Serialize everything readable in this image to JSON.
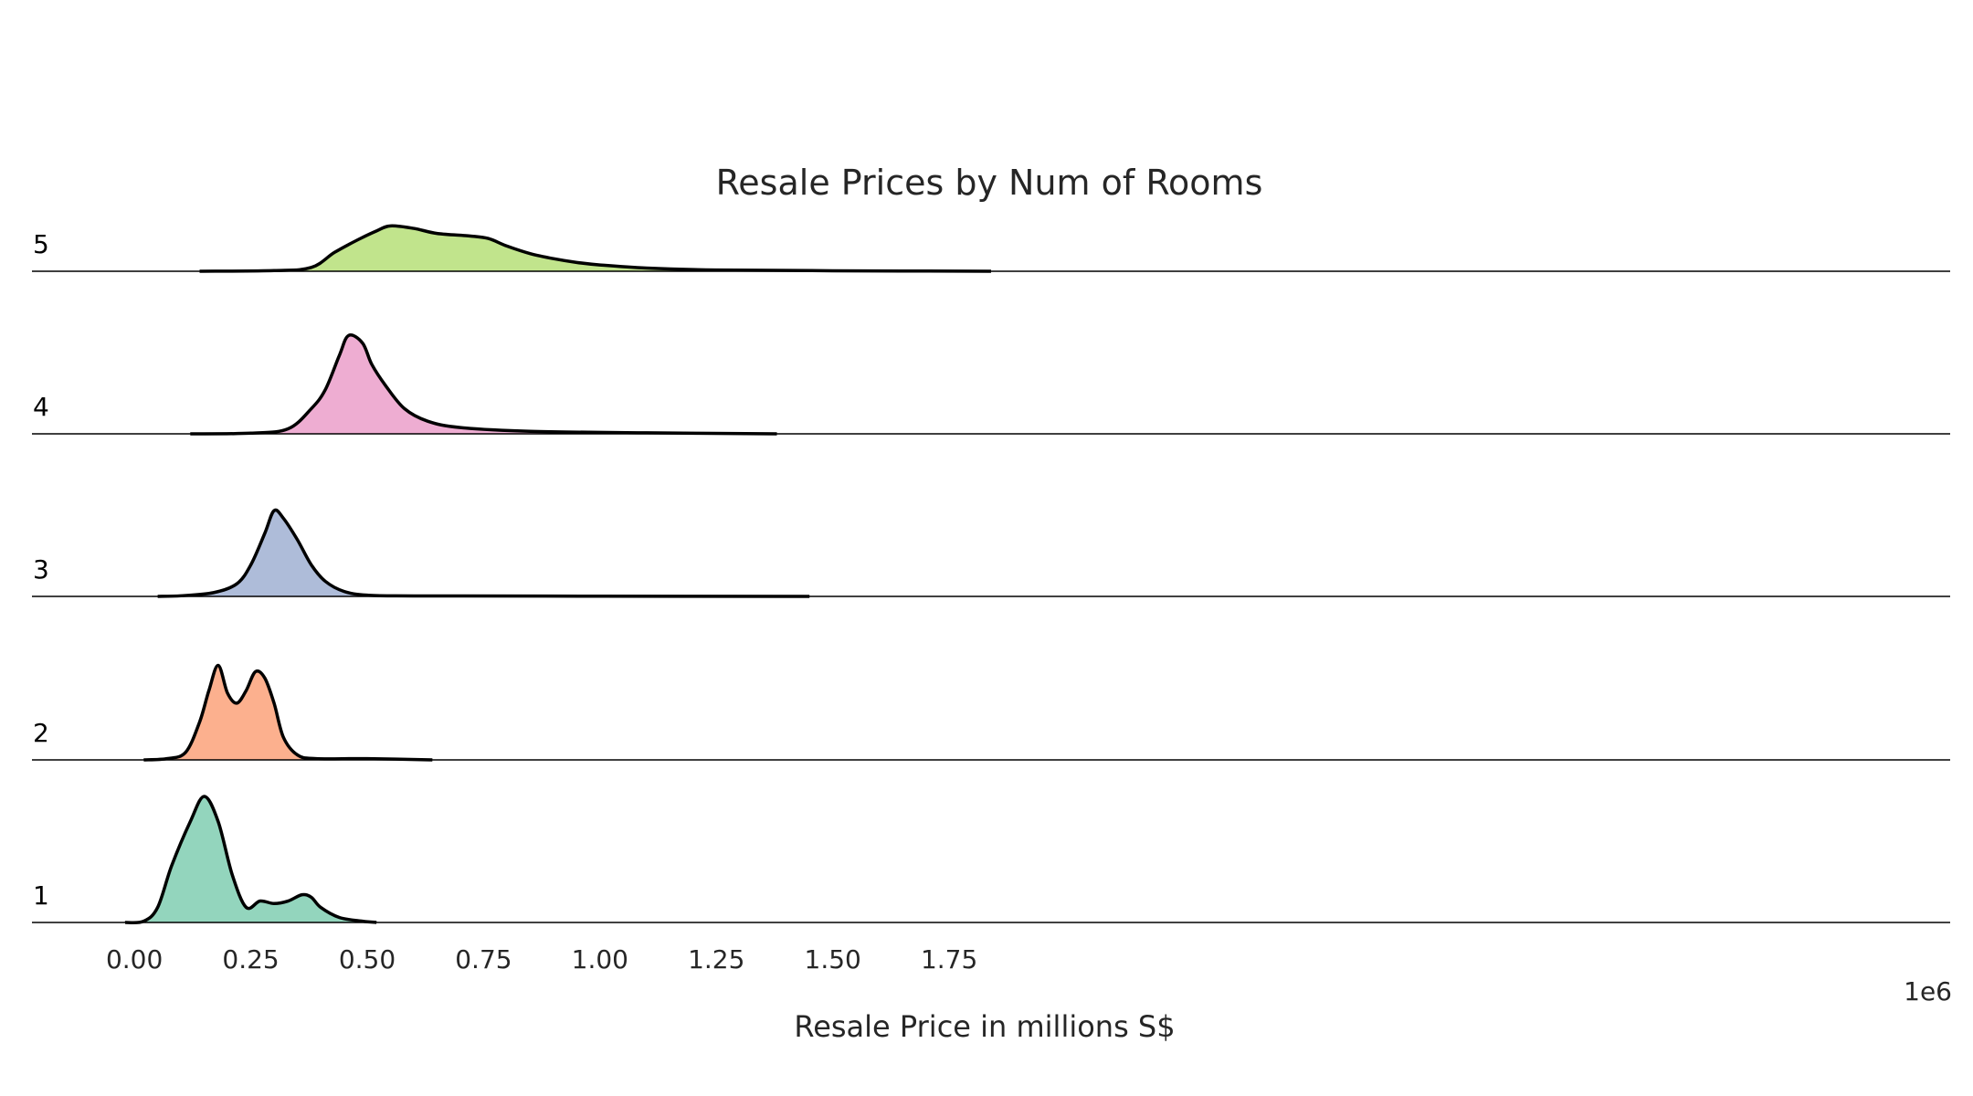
{
  "chart_data": {
    "type": "ridgeline",
    "title": "Resale Prices by Num of Rooms",
    "xlabel": "Resale Price in millions S$",
    "x_offset_label": "1e6",
    "xlim": [
      -0.22,
      3.9
    ],
    "xticks": [
      0.0,
      0.25,
      0.5,
      0.75,
      1.0,
      1.25,
      1.5,
      1.75
    ],
    "xtick_labels": [
      "0.00",
      "0.25",
      "0.50",
      "0.75",
      "1.00",
      "1.25",
      "1.50",
      "1.75"
    ],
    "x_unit_note": "x values in units of 1e6 S$ (tick value 0.25 = 250,000 S$)",
    "grid": false,
    "legend": "none",
    "series": [
      {
        "name": "1",
        "color": "#93d5bd",
        "points": [
          [
            -0.02,
            0
          ],
          [
            0.02,
            0.01
          ],
          [
            0.05,
            0.12
          ],
          [
            0.08,
            0.45
          ],
          [
            0.12,
            0.8
          ],
          [
            0.15,
            1.0
          ],
          [
            0.18,
            0.8
          ],
          [
            0.21,
            0.38
          ],
          [
            0.24,
            0.12
          ],
          [
            0.27,
            0.17
          ],
          [
            0.3,
            0.15
          ],
          [
            0.33,
            0.17
          ],
          [
            0.36,
            0.22
          ],
          [
            0.38,
            0.2
          ],
          [
            0.4,
            0.12
          ],
          [
            0.44,
            0.04
          ],
          [
            0.49,
            0.01
          ],
          [
            0.52,
            0
          ]
        ]
      },
      {
        "name": "2",
        "color": "#fcb08e",
        "points": [
          [
            0.02,
            0
          ],
          [
            0.07,
            0.01
          ],
          [
            0.11,
            0.06
          ],
          [
            0.14,
            0.3
          ],
          [
            0.16,
            0.55
          ],
          [
            0.18,
            0.75
          ],
          [
            0.2,
            0.53
          ],
          [
            0.22,
            0.45
          ],
          [
            0.24,
            0.55
          ],
          [
            0.26,
            0.7
          ],
          [
            0.28,
            0.65
          ],
          [
            0.3,
            0.45
          ],
          [
            0.32,
            0.18
          ],
          [
            0.35,
            0.04
          ],
          [
            0.39,
            0.01
          ],
          [
            0.5,
            0.01
          ],
          [
            0.64,
            0
          ]
        ]
      },
      {
        "name": "3",
        "color": "#aebcd9",
        "points": [
          [
            0.05,
            0
          ],
          [
            0.1,
            0.005
          ],
          [
            0.17,
            0.03
          ],
          [
            0.22,
            0.1
          ],
          [
            0.25,
            0.25
          ],
          [
            0.28,
            0.5
          ],
          [
            0.3,
            0.68
          ],
          [
            0.32,
            0.62
          ],
          [
            0.35,
            0.45
          ],
          [
            0.38,
            0.25
          ],
          [
            0.41,
            0.12
          ],
          [
            0.45,
            0.04
          ],
          [
            0.5,
            0.01
          ],
          [
            0.6,
            0.004
          ],
          [
            1.0,
            0.002
          ],
          [
            1.45,
            0
          ]
        ]
      },
      {
        "name": "4",
        "color": "#eeadd2",
        "points": [
          [
            0.12,
            0
          ],
          [
            0.25,
            0.005
          ],
          [
            0.33,
            0.04
          ],
          [
            0.38,
            0.2
          ],
          [
            0.41,
            0.35
          ],
          [
            0.44,
            0.62
          ],
          [
            0.46,
            0.78
          ],
          [
            0.49,
            0.72
          ],
          [
            0.51,
            0.55
          ],
          [
            0.54,
            0.38
          ],
          [
            0.58,
            0.2
          ],
          [
            0.63,
            0.1
          ],
          [
            0.7,
            0.05
          ],
          [
            0.85,
            0.02
          ],
          [
            1.1,
            0.008
          ],
          [
            1.38,
            0
          ]
        ]
      },
      {
        "name": "5",
        "color": "#c1e48c",
        "points": [
          [
            0.14,
            0
          ],
          [
            0.3,
            0.005
          ],
          [
            0.38,
            0.03
          ],
          [
            0.43,
            0.15
          ],
          [
            0.48,
            0.25
          ],
          [
            0.52,
            0.32
          ],
          [
            0.55,
            0.36
          ],
          [
            0.6,
            0.34
          ],
          [
            0.65,
            0.3
          ],
          [
            0.72,
            0.28
          ],
          [
            0.76,
            0.26
          ],
          [
            0.8,
            0.2
          ],
          [
            0.85,
            0.14
          ],
          [
            0.9,
            0.1
          ],
          [
            0.95,
            0.07
          ],
          [
            1.0,
            0.05
          ],
          [
            1.1,
            0.025
          ],
          [
            1.25,
            0.01
          ],
          [
            1.5,
            0.004
          ],
          [
            1.84,
            0
          ]
        ]
      }
    ]
  }
}
